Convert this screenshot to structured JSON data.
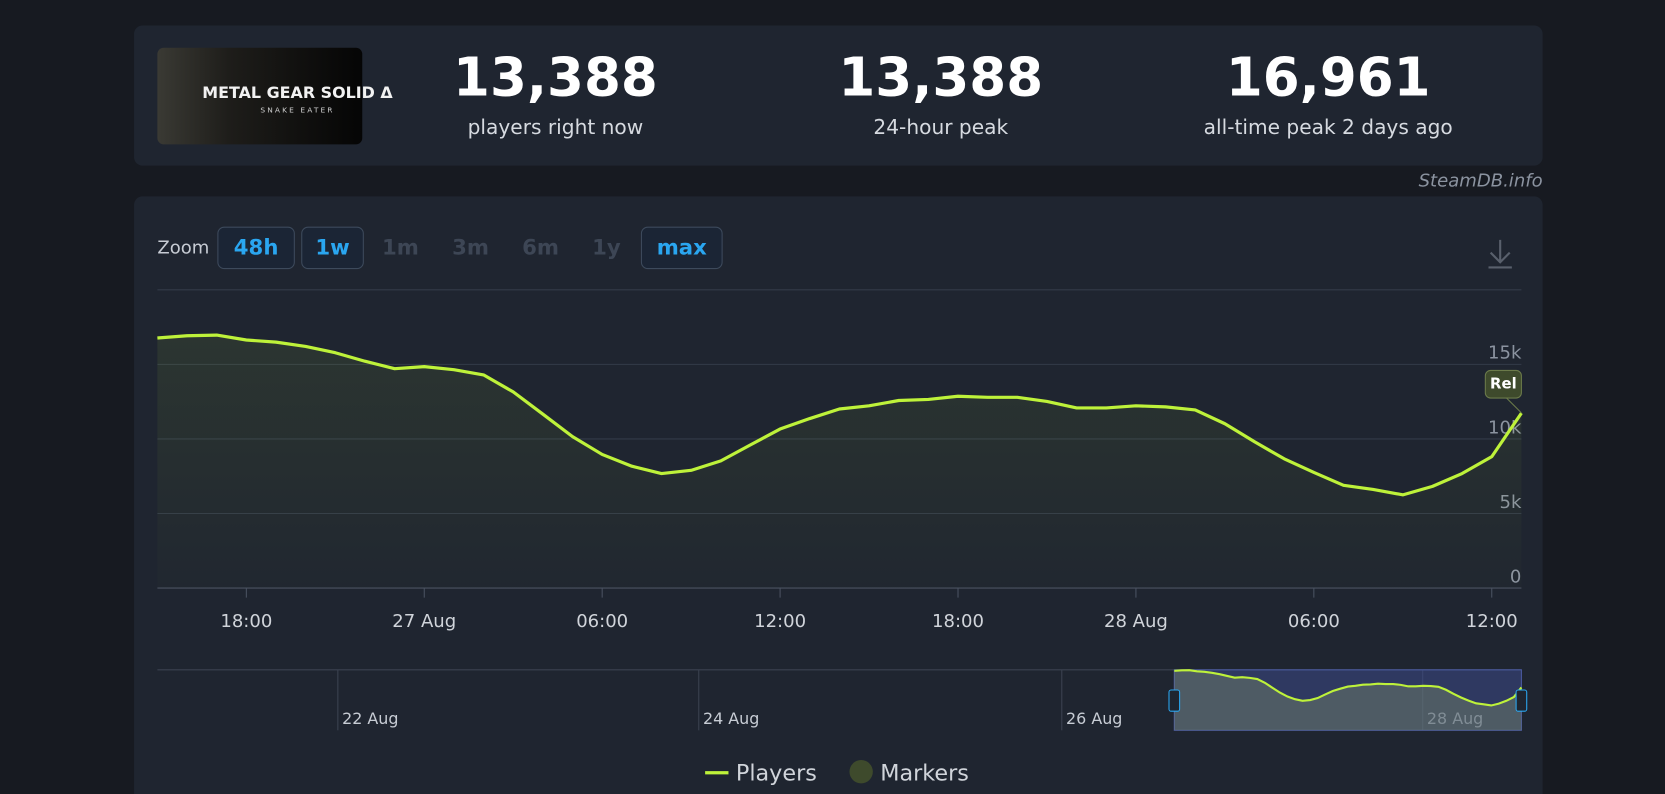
{
  "header": {
    "game_image": {
      "title": "METAL GEAR SOLID Δ",
      "subtitle": "SNAKE EATER"
    },
    "stats": [
      {
        "value": "13,388",
        "label": "players right now"
      },
      {
        "value": "13,388",
        "label": "24-hour peak"
      },
      {
        "value": "16,961",
        "label": "all-time peak 2 days ago"
      }
    ]
  },
  "source": "SteamDB.info",
  "zoom": {
    "label": "Zoom",
    "options": [
      {
        "label": "48h",
        "enabled": true
      },
      {
        "label": "1w",
        "enabled": true
      },
      {
        "label": "1m",
        "enabled": false
      },
      {
        "label": "3m",
        "enabled": false
      },
      {
        "label": "6m",
        "enabled": false
      },
      {
        "label": "1y",
        "enabled": false
      },
      {
        "label": "max",
        "enabled": true
      }
    ]
  },
  "chart_data": {
    "type": "line",
    "categories": [
      null,
      null,
      null,
      "18:00",
      null,
      null,
      null,
      null,
      null,
      "27 Aug",
      null,
      null,
      null,
      null,
      null,
      "06:00",
      null,
      null,
      null,
      null,
      null,
      "12:00",
      null,
      null,
      null,
      null,
      null,
      "18:00",
      null,
      null,
      null,
      null,
      null,
      "28 Aug",
      null,
      null,
      null,
      null,
      null,
      "06:00",
      null,
      null,
      null,
      null,
      null,
      "12:00",
      null
    ],
    "series": [
      {
        "name": "Players",
        "color": "#bef23a",
        "values": [
          16770,
          16920,
          16960,
          16630,
          16490,
          16200,
          15780,
          15210,
          14710,
          14850,
          14640,
          14290,
          13150,
          11660,
          10160,
          8960,
          8170,
          7680,
          7890,
          8530,
          9600,
          10660,
          11370,
          12010,
          12220,
          12580,
          12650,
          12860,
          12790,
          12790,
          12510,
          12080,
          12080,
          12220,
          12150,
          11940,
          11020,
          9810,
          8670,
          7750,
          6890,
          6610,
          6250,
          6820,
          7680,
          8810,
          11730
        ]
      }
    ],
    "ylim": [
      0,
      20000
    ],
    "yticks": [
      0,
      {
        "value": 5000,
        "label": "5k"
      },
      {
        "value": 10000,
        "label": "10k"
      },
      {
        "value": 15000,
        "label": "15k"
      }
    ],
    "grid": true,
    "markers": {
      "name": "Markers",
      "color": "#3e4a2c",
      "label": "Rel"
    },
    "navigator": {
      "labels": [
        "22 Aug",
        "24 Aug",
        "26 Aug",
        "28 Aug"
      ]
    }
  }
}
